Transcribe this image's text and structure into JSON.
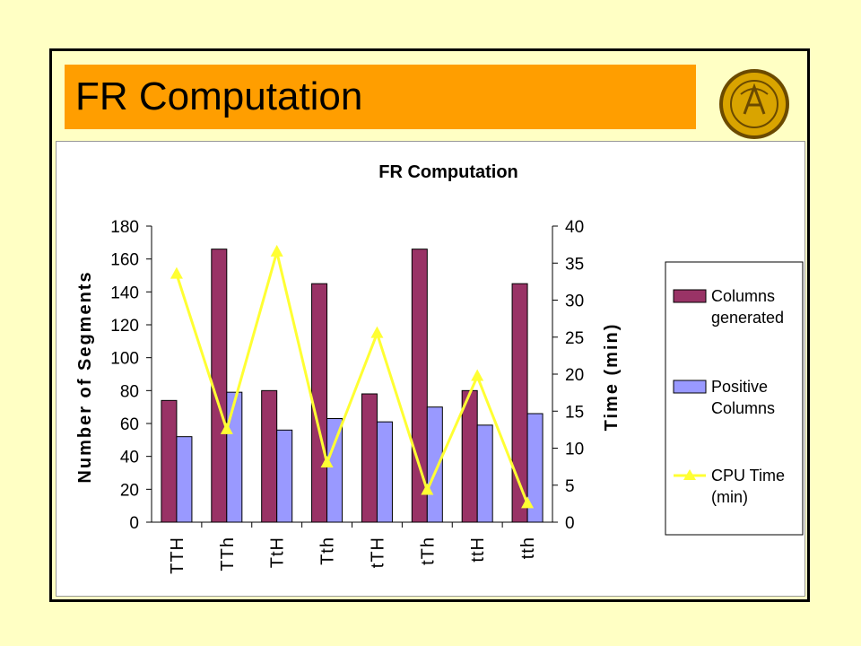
{
  "slide": {
    "title": "FR Computation"
  },
  "colors": {
    "background": "#ffffc4",
    "banner": "#ff9e00",
    "columns_generated": "#993366",
    "positive_columns": "#9999ff",
    "cpu_time": "#ffff33"
  },
  "logo": {
    "icon": "university-seal-icon"
  },
  "chart_data": {
    "type": "bar",
    "title": "FR Computation",
    "categories": [
      "TTH",
      "TTh",
      "TtH",
      "Tth",
      "tTH",
      "tTh",
      "ttH",
      "tth"
    ],
    "ylabel": "Number of Segments",
    "ylim": [
      0,
      180
    ],
    "yticks": [
      "0",
      "20",
      "40",
      "60",
      "80",
      "100",
      "120",
      "140",
      "160",
      "180"
    ],
    "y2label": "Time (min)",
    "y2lim": [
      0,
      40
    ],
    "y2ticks": [
      "0",
      "5",
      "10",
      "15",
      "20",
      "25",
      "30",
      "35",
      "40"
    ],
    "legend_position": "right",
    "grid": false,
    "series": [
      {
        "name": "Columns generated",
        "kind": "bar",
        "axis": "left",
        "values": [
          74,
          166,
          80,
          145,
          78,
          166,
          80,
          145
        ]
      },
      {
        "name": "Positive Columns",
        "kind": "bar",
        "axis": "left",
        "values": [
          52,
          79,
          56,
          63,
          61,
          70,
          59,
          66
        ]
      },
      {
        "name": "CPU Time (min)",
        "kind": "line",
        "axis": "right",
        "values": [
          33.5,
          12.5,
          36.5,
          8,
          25.5,
          4.3,
          19.7,
          2.5
        ]
      }
    ]
  }
}
